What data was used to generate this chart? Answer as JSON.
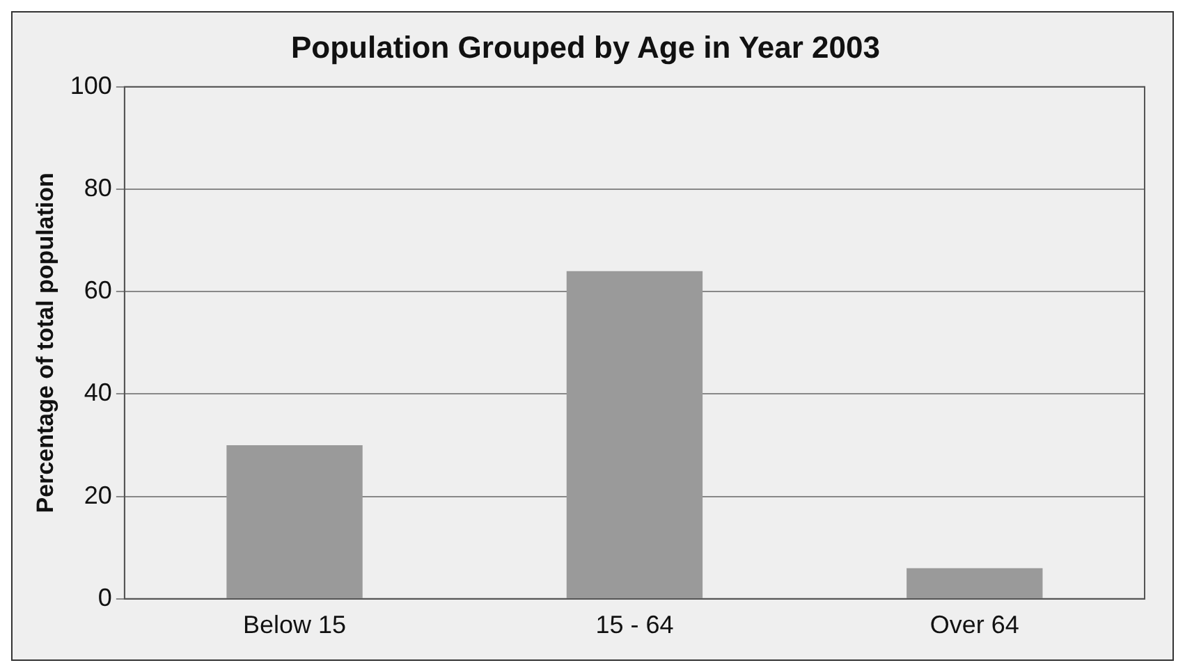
{
  "chart_data": {
    "type": "bar",
    "title": "Population Grouped by Age in Year 2003",
    "ylabel": "Percentage of total population",
    "categories": [
      "Below 15",
      "15 - 64",
      "Over 64"
    ],
    "values": [
      30,
      64,
      6
    ],
    "color": "#9a9a9a",
    "ylim": [
      0,
      100
    ],
    "yticks": [
      0,
      20,
      40,
      60,
      80,
      100
    ],
    "grid": "y",
    "legend": false
  }
}
